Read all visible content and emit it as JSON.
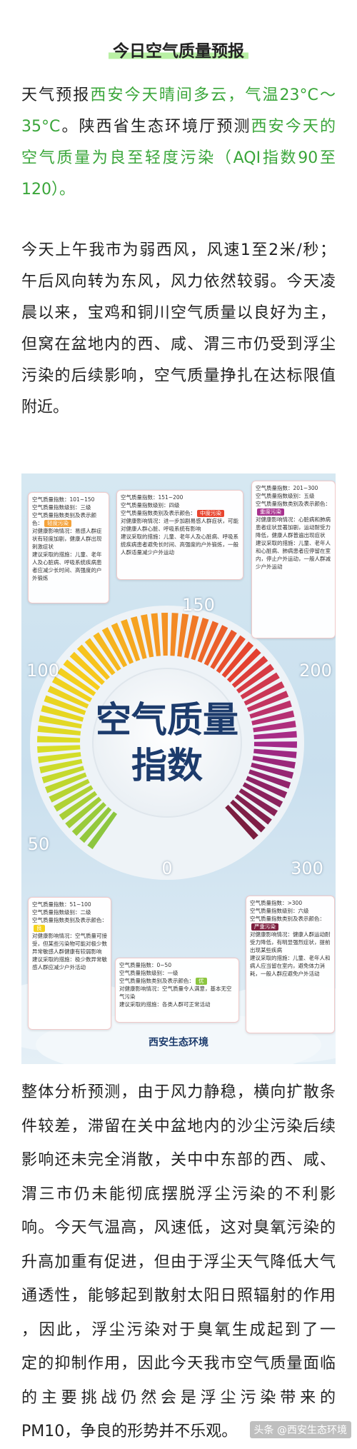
{
  "title": "今日空气质量预报",
  "paragraph_1": {
    "lines": [
      [
        "天气预报",
        {
          "text": "西安今天晴间多云，气温23°C～",
          "color": "#3aa63a"
        }
      ],
      [
        {
          "text": "35°C",
          "color": "#3aa63a"
        },
        "。陕西省生态环境厅预测",
        {
          "text": "西安今天的",
          "color": "#3aa63a"
        }
      ],
      [
        {
          "text": "空气质量为良至轻度污染（AQI指数90至",
          "color": "#3aa63a"
        }
      ],
      [
        {
          "text": "120）。",
          "color": "#3aa63a"
        }
      ]
    ]
  },
  "paragraph_2": {
    "lines": [
      "今天上午我市为弱西风，风速1至2米/秒；",
      "午后风向转为东风，风力依然较弱。今天凌",
      "晨以来，宝鸡和铜川空气质量以良好为主，",
      "但窝在盆地内的西、咸、渭三市仍受到浮尘",
      "污染的后续影响，空气质量挣扎在达标限值",
      "附近。"
    ]
  },
  "infographic": {
    "title_lines": [
      "空气质量",
      "指数"
    ],
    "scale_labels": [
      0,
      50,
      100,
      150,
      200,
      300
    ],
    "boxes": [
      {
        "tag_color": "#f4a23a",
        "rows": [
          "空气质量指数：101~150",
          "空气质量指数级别：三级",
          {
            "text": "空气质量指数类别及表示颜色：",
            "tag": "轻度污染"
          },
          "对健康影响情况：易感人群症状有轻度加剧，健康人群出现刺激症状",
          "建议采取的措施：儿童、老年人及心脏病、呼吸系统疾病患者应减少长时间、高强度的户外锻炼"
        ]
      },
      {
        "tag_color": "#e8452f",
        "rows": [
          "空气质量指数：151~200",
          "空气质量指数级别：四级",
          {
            "text": "空气质量指数类别及表示颜色：",
            "tag": "中度污染"
          },
          "对健康影响情况：进一步加剧易感人群症状，可能对健康人群心脏、呼吸系统有影响",
          "建议采取的措施：儿童、老年人及心脏病、呼吸系统疾病患者避免长时间、高强度的户外锻炼，一般人群适量减少户外运动"
        ]
      },
      {
        "tag_color": "#a8328f",
        "rows": [
          "空气质量指数：201~300",
          "空气质量指数级别：五级",
          {
            "text": "空气质量指数类别及表示颜色：",
            "tag": "重度污染"
          },
          "对健康影响情况：心脏病和肺病患者症状显著加剧，运动耐受力降低，健康人群普遍出现症状",
          "建议采取的措施：儿童、老年人和心脏病、肺病患者应停留在室内，停止户外运动，一般人群减少户外运动"
        ]
      },
      {
        "tag_color": "#f5d21c",
        "rows": [
          "空气质量指数：51~100",
          "空气质量指数级别：二级",
          {
            "text": "空气质量指数类别及表示颜色：",
            "tag": "良"
          },
          "对健康影响情况：空气质量可接受，但某些污染物可能对极少数异常敏感人群健康有较弱影响",
          "建议采取的措施：极少数异常敏感人群应减少户外活动"
        ]
      },
      {
        "tag_color": "#8cc63f",
        "rows": [
          "空气质量指数：0~50",
          "空气质量指数级别：一级",
          {
            "text": "空气质量指数类别及表示颜色：",
            "tag": "优"
          },
          "对健康影响情况：空气质量令人满意，基本无空气污染",
          "建议采取的措施：各类人群可正常活动"
        ]
      },
      {
        "tag_color": "#7e1f3f",
        "rows": [
          "空气质量指数：>300",
          "空气质量指数级别：六级",
          {
            "text": "空气质量指数类别及表示颜色：",
            "tag": "严重污染"
          },
          "对健康影响情况：健康人群运动耐受力降低，有明显强烈症状，提前出现某些疾病",
          "建议采取的措施：儿童、老年人和病人应当留在室内，避免体力消耗，一般人群应避免户外活动"
        ]
      }
    ],
    "footer": "西安生态环境"
  },
  "paragraph_3": {
    "lines": [
      "整体分析预测，由于风力静稳，横向扩散条",
      "件较差，滞留在关中盆地内的沙尘污染后续",
      "影响还未完全消散，关中中东部的西、咸、",
      "渭三市仍未能彻底摆脱浮尘污染的不利影",
      "响。今天气温高，风速低，这对臭氧污染的",
      "升高加重有促进，但由于浮尘天气降低大气",
      "通透性，能够起到散射太阳日照辐射的作用",
      "，因此，浮尘污染对于臭氧生成起到了一",
      "定的抑制作用，因此今天我市空气质量面临",
      "的主要挑战仍然会是浮尘污染带来的",
      "PM10，争良的形势并不乐观。"
    ]
  },
  "watermark": "头条 @西安生态环境"
}
